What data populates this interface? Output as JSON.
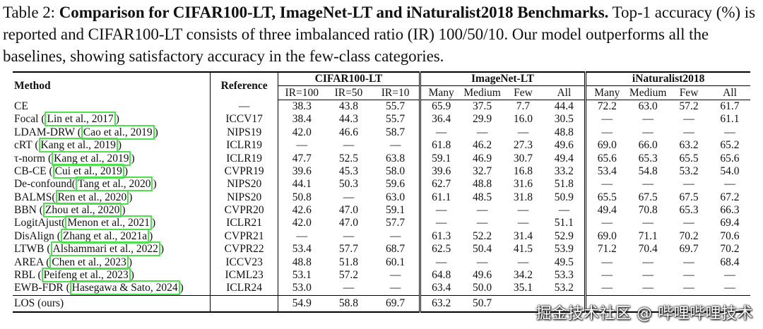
{
  "caption": {
    "label": "Table 2:",
    "bold": "Comparison for CIFAR100-LT, ImageNet-LT and iNaturalist2018 Benchmarks.",
    "rest": "Top-1 accuracy (%) is reported and CIFAR100-LT consists of three imbalanced ratio (IR) 100/50/10. Our model outperforms all the baselines, showing satisfactory accuracy in the few-class categories."
  },
  "header": {
    "method": "Method",
    "reference": "Reference",
    "groups": [
      "CIFAR100-LT",
      "ImageNet-LT",
      "iNaturalist2018"
    ],
    "cifar_cols": [
      "IR=100",
      "IR=50",
      "IR=10"
    ],
    "inet_cols": [
      "Many",
      "Medium",
      "Few",
      "All"
    ],
    "inat_cols": [
      "Many",
      "Medium",
      "Few",
      "All"
    ]
  },
  "rows": [
    {
      "name": "CE",
      "cite": "",
      "ref": "—",
      "vals": [
        "38.3",
        "43.8",
        "55.7",
        "65.9",
        "37.5",
        "7.7",
        "44.4",
        "72.2",
        "63.0",
        "57.2",
        "61.7"
      ]
    },
    {
      "name": "Focal ",
      "cite": "Lin et al., 2017",
      "ref": "ICCV17",
      "vals": [
        "38.4",
        "44.3",
        "55.7",
        "36.4",
        "29.9",
        "16.0",
        "30.5",
        "—",
        "—",
        "—",
        "61.1"
      ]
    },
    {
      "name": "LDAM-DRW ",
      "cite": "Cao et al., 2019",
      "ref": "NIPS19",
      "vals": [
        "42.0",
        "46.6",
        "58.7",
        "—",
        "—",
        "—",
        "48.8",
        "—",
        "—",
        "—",
        "—"
      ]
    },
    {
      "name": "cRT ",
      "cite": "Kang et al., 2019",
      "ref": "ICLR19",
      "vals": [
        "—",
        "—",
        "—",
        "61.8",
        "46.2",
        "27.3",
        "49.6",
        "69.0",
        "66.0",
        "63.2",
        "65.2"
      ]
    },
    {
      "name": "τ-norm ",
      "cite": "Kang et al., 2019",
      "ref": "ICLR19",
      "vals": [
        "47.7",
        "52.5",
        "63.8",
        "59.1",
        "46.9",
        "30.7",
        "49.4",
        "65.6",
        "65.3",
        "65.5",
        "65.6"
      ]
    },
    {
      "name": "CB-CE ",
      "cite": "Cui et al., 2019",
      "ref": "CVPR19",
      "vals": [
        "39.6",
        "45.3",
        "58.0",
        "39.6",
        "32.7",
        "16.8",
        "33.2",
        "53.4",
        "54.8",
        "53.2",
        "54.0"
      ]
    },
    {
      "name": "De-confound",
      "cite": "Tang et al., 2020",
      "ref": "NIPS20",
      "vals": [
        "44.1",
        "50.3",
        "59.6",
        "62.7",
        "48.8",
        "31.6",
        "51.8",
        "—",
        "—",
        "—",
        "—"
      ]
    },
    {
      "name": "BALMS",
      "cite": "Ren et al., 2020",
      "ref": "NIPS20",
      "vals": [
        "50.8",
        "—",
        "63.0",
        "61.1",
        "48.5",
        "31.8",
        "50.9",
        "65.5",
        "67.5",
        "67.5",
        "67.2"
      ]
    },
    {
      "name": "BBN ",
      "cite": "Zhou et al., 2020",
      "ref": "CVPR20",
      "vals": [
        "42.6",
        "47.0",
        "59.1",
        "—",
        "—",
        "—",
        "—",
        "49.4",
        "70.8",
        "65.3",
        "66.3"
      ]
    },
    {
      "name": "LogitAjust",
      "cite": "Menon et al., 2021",
      "ref": "ICLR21",
      "vals": [
        "42.0",
        "47.0",
        "57.7",
        "—",
        "—",
        "—",
        "51.1",
        "—",
        "—",
        "—",
        "69.4"
      ]
    },
    {
      "name": "DisAlign ",
      "cite": "Zhang et al., 2021a",
      "ref": "CVPR21",
      "vals": [
        "—",
        "—",
        "—",
        "61.3",
        "52.2",
        "31.4",
        "52.9",
        "69.0",
        "71.1",
        "70.2",
        "70.6"
      ]
    },
    {
      "name": "LTWB ",
      "cite": "Alshammari et al., 2022",
      "ref": "CVPR22",
      "vals": [
        "53.4",
        "57.7",
        "68.7",
        "62.5",
        "50.4",
        "41.5",
        "53.9",
        "71.2",
        "70.4",
        "69.7",
        "70.2"
      ]
    },
    {
      "name": "AREA ",
      "cite": "Chen et al., 2023",
      "ref": "ICCV23",
      "vals": [
        "48.8",
        "51.8",
        "60.1",
        "—",
        "—",
        "—",
        "49.5",
        "—",
        "—",
        "—",
        "68.4"
      ]
    },
    {
      "name": "RBL ",
      "cite": "Peifeng et al., 2023",
      "ref": "ICML23",
      "vals": [
        "53.1",
        "57.2",
        "—",
        "64.8",
        "49.6",
        "34.2",
        "53.3",
        "—",
        "—",
        "—",
        "—"
      ]
    },
    {
      "name": "EWB-FDR ",
      "cite": "Hasegawa & Sato, 2024",
      "ref": "ICLR24",
      "vals": [
        "53.0",
        "—",
        "—",
        "63.4",
        "50.0",
        "35.1",
        "53.2",
        "—",
        "—",
        "—",
        "—"
      ]
    }
  ],
  "final": {
    "name": "LOS (ours)",
    "ref": "",
    "vals": [
      "54.9",
      "58.8",
      "69.7",
      "63.2",
      "50.7",
      "",
      "",
      "",
      "",
      "",
      ""
    ]
  },
  "watermark": "掘金技术社区 @ 哔哩哔哩技术",
  "colors": {
    "cite_border": "#4de14d"
  }
}
